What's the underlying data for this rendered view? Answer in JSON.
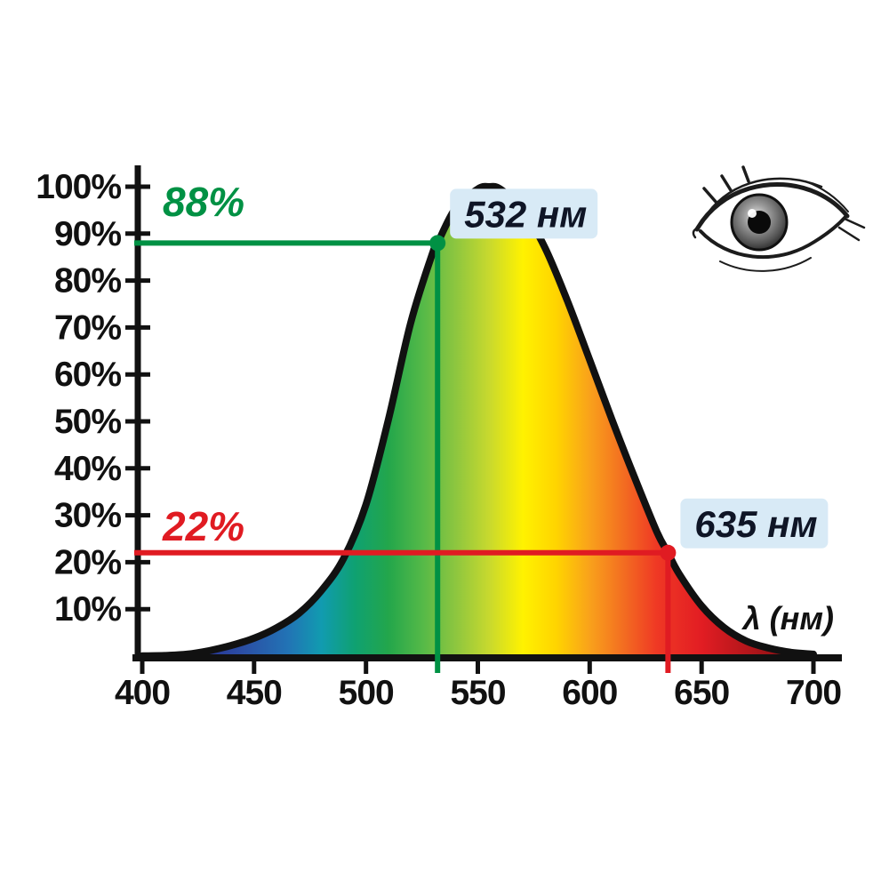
{
  "page": {
    "background": "#ffffff"
  },
  "icons": {
    "eye": "human-eye-sketch"
  },
  "chart_data": {
    "type": "area",
    "xlabel": "λ (нм)",
    "xlim": [
      400,
      700
    ],
    "ylim": [
      0,
      100
    ],
    "grid": false,
    "legend": "none",
    "axis_color": "#111111",
    "label_box_color": "#d8eaf6",
    "label_text_color": "#0f1526",
    "x_ticks": [
      400,
      450,
      500,
      550,
      600,
      650,
      700
    ],
    "x_tick_labels": [
      "400",
      "450",
      "500",
      "550",
      "600",
      "650",
      "700"
    ],
    "y_ticks": [
      100,
      90,
      80,
      70,
      60,
      50,
      40,
      30,
      20,
      10
    ],
    "y_tick_labels": [
      "100%",
      "90%",
      "80%",
      "70%",
      "60%",
      "50%",
      "40%",
      "30%",
      "20%",
      "10%"
    ],
    "series": [
      {
        "name": "relative-eye-sensitivity",
        "x": [
          400,
          410,
          420,
          430,
          440,
          450,
          460,
          470,
          480,
          490,
          500,
          510,
          520,
          530,
          532,
          540,
          550,
          555,
          560,
          570,
          580,
          590,
          600,
          610,
          620,
          630,
          635,
          640,
          650,
          660,
          670,
          680,
          690,
          700
        ],
        "y": [
          0.04,
          0.12,
          0.4,
          1.16,
          2.3,
          3.8,
          6,
          9.1,
          13.9,
          20.8,
          32.3,
          50.3,
          71,
          86.2,
          88,
          95.4,
          99.5,
          100,
          99.5,
          95.2,
          87,
          75.7,
          63.1,
          50.3,
          38.1,
          26.5,
          22,
          17.5,
          10.7,
          6.1,
          3.2,
          1.7,
          0.8,
          0.4
        ]
      }
    ],
    "annotations": [
      {
        "id": "green",
        "x": 532,
        "y": 88,
        "percent_label": "88%",
        "x_label": "532 нм",
        "color": "#009144"
      },
      {
        "id": "red",
        "x": 635,
        "y": 22,
        "percent_label": "22%",
        "x_label": "635 нм",
        "color": "#e01b22"
      }
    ],
    "spectrum_gradient": [
      {
        "wl": 400,
        "color": "#1b1464"
      },
      {
        "wl": 420,
        "color": "#262a8f"
      },
      {
        "wl": 445,
        "color": "#2b4ea4"
      },
      {
        "wl": 465,
        "color": "#2273b5"
      },
      {
        "wl": 480,
        "color": "#119bb0"
      },
      {
        "wl": 495,
        "color": "#0fa171"
      },
      {
        "wl": 510,
        "color": "#23a64b"
      },
      {
        "wl": 525,
        "color": "#54b948"
      },
      {
        "wl": 540,
        "color": "#8dc63f"
      },
      {
        "wl": 555,
        "color": "#c8d92e"
      },
      {
        "wl": 570,
        "color": "#fff200"
      },
      {
        "wl": 585,
        "color": "#ffd400"
      },
      {
        "wl": 600,
        "color": "#f9a11b"
      },
      {
        "wl": 615,
        "color": "#f36d21"
      },
      {
        "wl": 630,
        "color": "#ef3824"
      },
      {
        "wl": 650,
        "color": "#e21d23"
      },
      {
        "wl": 670,
        "color": "#b5161b"
      },
      {
        "wl": 700,
        "color": "#6f0d10"
      }
    ]
  }
}
